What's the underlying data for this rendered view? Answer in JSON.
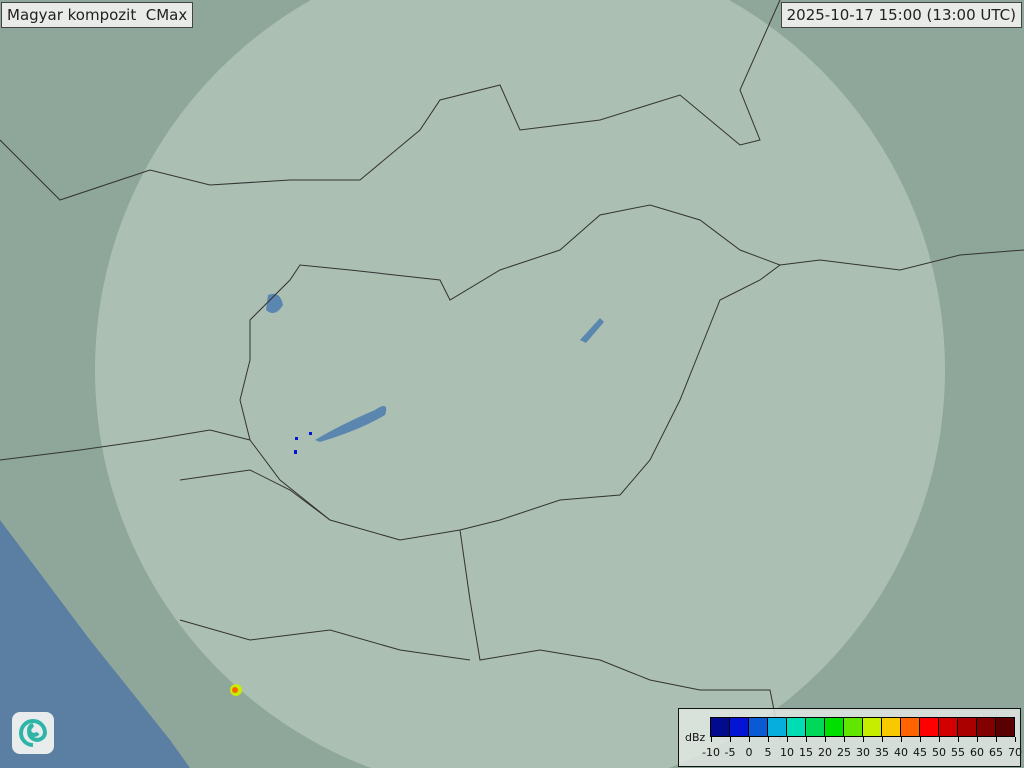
{
  "title": "Magyar kompozit  CMax",
  "timestamp": "2025-10-17 15:00 (13:00 UTC)",
  "logo": "swirl-logo",
  "colors": {
    "land": "#8fa69a",
    "radar_coverage": "#b8c9bf",
    "water": "#5a86b0",
    "border": "#333333"
  },
  "legend": {
    "unit": "dBz",
    "ticks": [
      "-10",
      "-5",
      "0",
      "5",
      "10",
      "15",
      "20",
      "25",
      "30",
      "35",
      "40",
      "45",
      "50",
      "55",
      "60",
      "65",
      "70"
    ],
    "colors": [
      "#020a8e",
      "#0414d4",
      "#0a5ad6",
      "#05aedc",
      "#00dcb4",
      "#00d85a",
      "#00e000",
      "#60e600",
      "#c6ec00",
      "#f8c800",
      "#ff6400",
      "#ff0000",
      "#d20000",
      "#aa0000",
      "#820000",
      "#5a0000"
    ]
  }
}
